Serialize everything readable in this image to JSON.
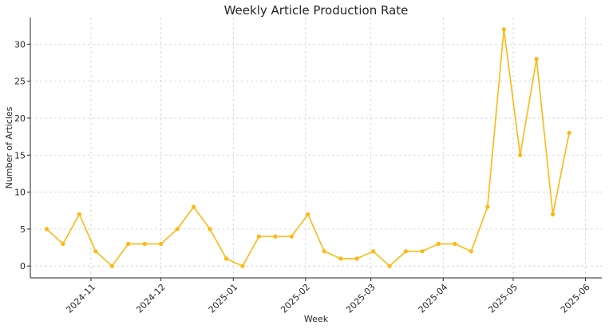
{
  "chart_data": {
    "type": "line",
    "title": "Weekly Article Production Rate",
    "xlabel": "Week",
    "ylabel": "Number of Articles",
    "color": "#FDB813",
    "grid": true,
    "x_ticks": [
      "2024-11",
      "2024-12",
      "2025-01",
      "2025-02",
      "2025-03",
      "2025-04",
      "2025-05",
      "2025-06"
    ],
    "y_ticks": [
      0,
      5,
      10,
      15,
      20,
      25,
      30
    ],
    "ylim": [
      -1.6,
      33.6
    ],
    "xlim": [
      "2024-10-06",
      "2025-06-08"
    ],
    "series": [
      {
        "x": [
          "2024-10-13",
          "2024-10-20",
          "2024-10-27",
          "2024-11-03",
          "2024-11-10",
          "2024-11-17",
          "2024-11-24",
          "2024-12-01",
          "2024-12-08",
          "2024-12-15",
          "2024-12-22",
          "2024-12-29",
          "2025-01-05",
          "2025-01-12",
          "2025-01-19",
          "2025-01-26",
          "2025-02-02",
          "2025-02-09",
          "2025-02-16",
          "2025-02-23",
          "2025-03-02",
          "2025-03-09",
          "2025-03-16",
          "2025-03-23",
          "2025-03-30",
          "2025-04-06",
          "2025-04-13",
          "2025-04-20",
          "2025-04-27",
          "2025-05-04",
          "2025-05-11",
          "2025-05-18",
          "2025-05-25"
        ],
        "values": [
          5,
          3,
          7,
          2,
          0,
          3,
          3,
          3,
          5,
          8,
          5,
          1,
          0,
          4,
          4,
          4,
          7,
          2,
          1,
          1,
          2,
          0,
          2,
          2,
          3,
          3,
          2,
          8,
          32,
          15,
          28,
          7,
          18
        ]
      }
    ]
  }
}
